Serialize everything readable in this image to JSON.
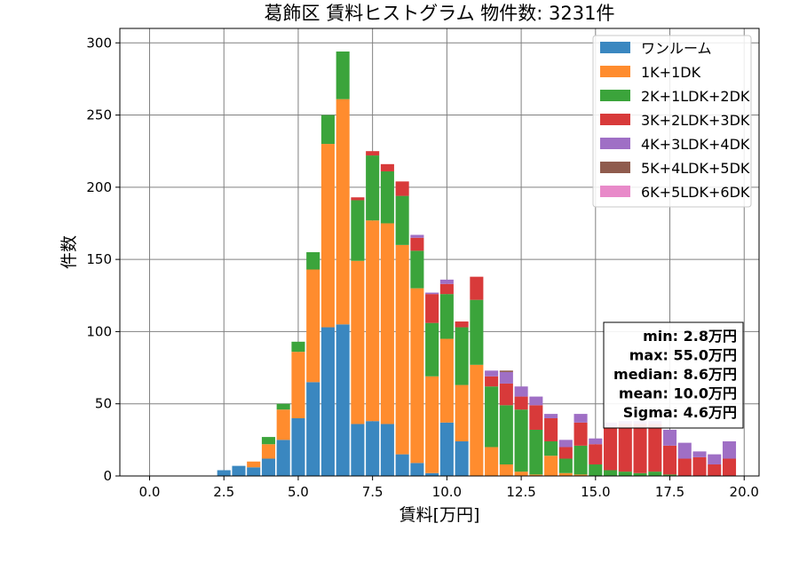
{
  "chart_data": {
    "type": "bar",
    "title": "葛飾区 賃料ヒストグラム  物件数: 3231件",
    "xlabel": "賃料[万円]",
    "ylabel": "件数",
    "xlim": [
      -1.0,
      20.5
    ],
    "ylim": [
      0,
      310
    ],
    "xticks": [
      0.0,
      2.5,
      5.0,
      7.5,
      10.0,
      12.5,
      15.0,
      17.5,
      20.0
    ],
    "xtick_labels": [
      "0.0",
      "2.5",
      "5.0",
      "7.5",
      "10.0",
      "12.5",
      "15.0",
      "17.5",
      "20.0"
    ],
    "yticks": [
      0,
      50,
      100,
      150,
      200,
      250,
      300
    ],
    "ytick_labels": [
      "0",
      "50",
      "100",
      "150",
      "200",
      "250",
      "300"
    ],
    "grid": true,
    "stacked": true,
    "bin_width": 0.5,
    "legend_position": "top-right",
    "bin_centers": [
      2.5,
      3.0,
      3.5,
      4.0,
      4.5,
      5.0,
      5.5,
      6.0,
      6.5,
      7.0,
      7.5,
      8.0,
      8.5,
      9.0,
      9.5,
      10.0,
      10.5,
      11.0,
      11.5,
      12.0,
      12.5,
      13.0,
      13.5,
      14.0,
      14.5,
      15.0,
      15.5,
      16.0,
      16.5,
      17.0,
      17.5,
      18.0,
      18.5,
      19.0,
      19.5
    ],
    "series": [
      {
        "name": "ワンルーム",
        "color": "#3a87c0",
        "values": [
          4,
          7,
          6,
          12,
          25,
          40,
          65,
          103,
          105,
          36,
          38,
          36,
          15,
          9,
          2,
          37,
          24,
          0,
          0,
          0,
          0,
          0,
          0,
          0,
          0,
          0,
          0,
          0,
          0,
          0,
          0,
          0,
          0,
          0,
          0
        ]
      },
      {
        "name": "1K+1DK",
        "color": "#ff8c2e",
        "values": [
          0,
          0,
          4,
          10,
          21,
          46,
          78,
          127,
          156,
          113,
          139,
          139,
          145,
          121,
          67,
          58,
          39,
          77,
          20,
          8,
          3,
          1,
          14,
          2,
          1,
          0,
          0,
          0,
          0,
          0,
          0,
          0,
          0,
          0,
          0
        ]
      },
      {
        "name": "2K+1LDK+2DK",
        "color": "#3ba43b",
        "values": [
          0,
          0,
          0,
          5,
          4,
          7,
          12,
          20,
          33,
          42,
          45,
          36,
          34,
          26,
          37,
          31,
          40,
          45,
          42,
          41,
          43,
          31,
          10,
          10,
          20,
          8,
          4,
          3,
          2,
          3,
          1,
          0,
          0,
          0,
          0
        ]
      },
      {
        "name": "3K+2LDK+3DK",
        "color": "#d83a3a",
        "values": [
          0,
          0,
          0,
          0,
          0,
          0,
          0,
          0,
          0,
          2,
          3,
          5,
          10,
          9,
          20,
          7,
          4,
          16,
          7,
          15,
          9,
          17,
          16,
          8,
          16,
          14,
          30,
          33,
          34,
          33,
          20,
          12,
          13,
          8,
          12
        ]
      },
      {
        "name": "4K+3LDK+4DK",
        "color": "#9f6fc5",
        "values": [
          0,
          0,
          0,
          0,
          0,
          0,
          0,
          0,
          0,
          0,
          0,
          0,
          0,
          2,
          1,
          3,
          0,
          0,
          4,
          8,
          7,
          6,
          3,
          5,
          6,
          4,
          3,
          2,
          2,
          2,
          11,
          11,
          4,
          7,
          12
        ]
      },
      {
        "name": "5K+4LDK+5DK",
        "color": "#8f5b4d",
        "values": [
          0,
          0,
          0,
          0,
          0,
          0,
          0,
          0,
          0,
          0,
          0,
          0,
          0,
          0,
          0,
          0,
          0,
          0,
          0,
          1,
          0,
          0,
          0,
          0,
          0,
          0,
          0,
          0,
          0,
          0,
          0,
          0,
          0,
          0,
          0
        ]
      },
      {
        "name": "6K+5LDK+6DK",
        "color": "#e88ac9",
        "values": [
          0,
          0,
          0,
          0,
          0,
          0,
          0,
          0,
          0,
          0,
          0,
          0,
          0,
          0,
          0,
          0,
          0,
          0,
          0,
          0,
          0,
          0,
          0,
          0,
          0,
          0,
          0,
          0,
          0,
          0,
          0,
          0,
          0,
          0,
          0
        ]
      }
    ],
    "stats_box": [
      "min: 2.8万円",
      "max: 55.0万円",
      "median: 8.6万円",
      "mean: 10.0万円",
      "Sigma: 4.6万円"
    ]
  }
}
